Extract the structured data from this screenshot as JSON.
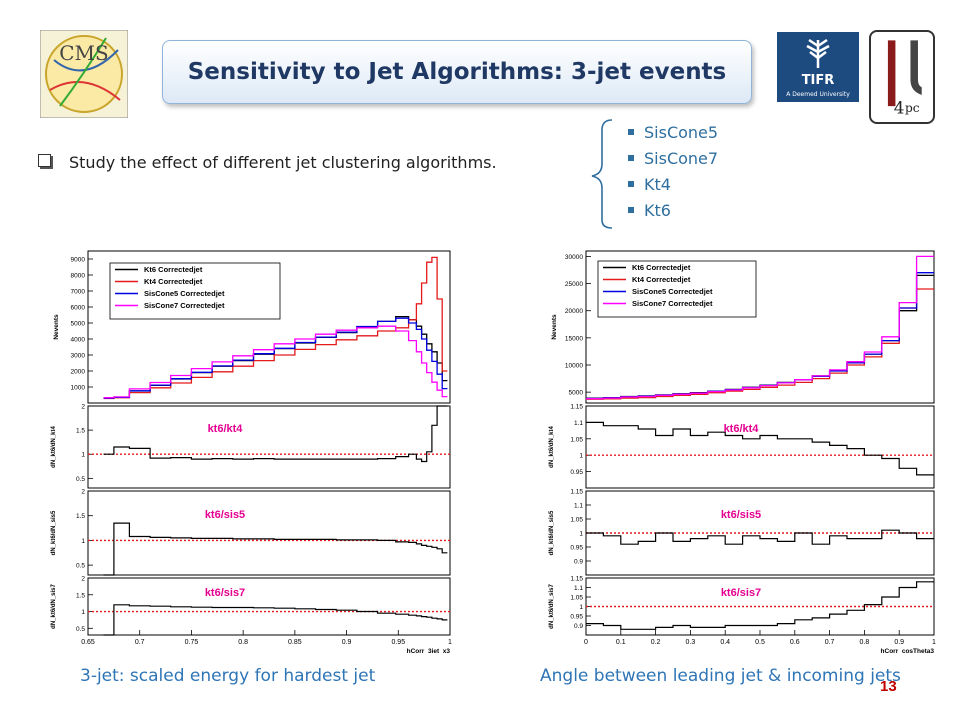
{
  "slide": {
    "title": "Sensitivity to Jet Algorithms: 3-jet events",
    "bullet": "Study the effect of different jet clustering algorithms.",
    "algorithms": [
      "SisCone5",
      "SisCone7",
      "Kt4",
      "Kt6"
    ],
    "caption_left": "3-jet: scaled energy for hardest jet",
    "caption_right": "Angle between leading jet & incoming jets",
    "slide_number": "13",
    "cms_logo_text": "CMS",
    "tifr_logo_text": "A Deemed University"
  },
  "colors": {
    "kt6": "#000000",
    "kt4": "#e41a1c",
    "sis5": "#0000e0",
    "sis7": "#ff00ff",
    "ratio_ref": "#e41a1c",
    "accent": "#2e75b6"
  },
  "chart_data": [
    {
      "type": "line",
      "xlabel": "hCorr_3jet_x3",
      "ylabel": "Nevents",
      "xlim": [
        0.65,
        1.0
      ],
      "x_ticks": [
        "0.65",
        "0.7",
        "0.75",
        "0.8",
        "0.85",
        "0.9",
        "0.95",
        "1"
      ],
      "main": {
        "ylim": [
          0,
          9500
        ],
        "y_ticks": [
          "1000",
          "2000",
          "3000",
          "4000",
          "5000",
          "6000",
          "7000",
          "8000",
          "9000"
        ],
        "x": [
          0.67,
          0.68,
          0.7,
          0.72,
          0.74,
          0.76,
          0.78,
          0.8,
          0.82,
          0.84,
          0.86,
          0.88,
          0.9,
          0.92,
          0.94,
          0.955,
          0.965,
          0.97,
          0.975,
          0.98,
          0.985,
          0.99,
          0.995
        ],
        "series": [
          {
            "name": "Kt6 Correctedjet",
            "values": [
              300,
              350,
              750,
              1100,
              1500,
              1900,
              2300,
              2650,
              3050,
              3400,
              3750,
              4100,
              4400,
              4750,
              5100,
              5400,
              5200,
              4800,
              4300,
              3700,
              3200,
              2500,
              1400
            ]
          },
          {
            "name": "Kt4 Correctedjet",
            "values": [
              280,
              330,
              650,
              950,
              1250,
              1600,
              1950,
              2300,
              2650,
              3000,
              3350,
              3650,
              3950,
              4200,
              4500,
              4700,
              5200,
              6200,
              7500,
              8800,
              9100,
              6500,
              2000
            ]
          },
          {
            "name": "SisCone5 Correctedjet",
            "values": [
              300,
              350,
              760,
              1120,
              1520,
              1920,
              2320,
              2680,
              3080,
              3420,
              3780,
              4120,
              4430,
              4780,
              5100,
              5300,
              5000,
              4600,
              4000,
              3300,
              2600,
              1800,
              900
            ]
          },
          {
            "name": "SisCone7 Correctedjet",
            "values": [
              330,
              380,
              880,
              1280,
              1720,
              2150,
              2570,
              2950,
              3330,
              3700,
              4000,
              4300,
              4550,
              4700,
              4800,
              4500,
              3900,
              3200,
              2500,
              1900,
              1300,
              800,
              400
            ]
          }
        ]
      },
      "ratios": [
        {
          "label": "kt6/kt4",
          "ylabel": "dN_kt6/dN_kt4",
          "ylim": [
            0.3,
            2
          ],
          "y_ticks": [
            "0.5",
            "1",
            "1.5",
            "2"
          ],
          "x": [
            0.67,
            0.68,
            0.7,
            0.72,
            0.74,
            0.76,
            0.78,
            0.8,
            0.82,
            0.84,
            0.86,
            0.88,
            0.9,
            0.92,
            0.94,
            0.955,
            0.965,
            0.97,
            0.975,
            0.98,
            0.985,
            0.99,
            0.995
          ],
          "values": [
            1.0,
            1.15,
            1.12,
            0.92,
            0.93,
            0.9,
            0.91,
            0.9,
            0.91,
            0.9,
            0.9,
            0.9,
            0.9,
            0.9,
            0.91,
            0.95,
            1.0,
            0.9,
            0.85,
            1.05,
            1.6,
            2.0,
            2.0
          ]
        },
        {
          "label": "kt6/sis5",
          "ylabel": "dN_kt6/dN_sis5",
          "ylim": [
            0.3,
            2
          ],
          "y_ticks": [
            "0.5",
            "1",
            "1.5",
            "2"
          ],
          "x": [
            0.67,
            0.68,
            0.7,
            0.72,
            0.74,
            0.76,
            0.78,
            0.8,
            0.82,
            0.84,
            0.86,
            0.88,
            0.9,
            0.92,
            0.94,
            0.955,
            0.965,
            0.97,
            0.975,
            0.98,
            0.985,
            0.99,
            0.995
          ],
          "values": [
            0.3,
            1.35,
            1.08,
            1.06,
            1.05,
            1.04,
            1.04,
            1.03,
            1.03,
            1.02,
            1.02,
            1.02,
            1.01,
            1.01,
            1.0,
            0.97,
            0.96,
            0.93,
            0.9,
            0.88,
            0.86,
            0.83,
            0.75
          ]
        },
        {
          "label": "kt6/sis7",
          "ylabel": "dN_kt6/dN_sis7",
          "ylim": [
            0.3,
            2
          ],
          "y_ticks": [
            "0.5",
            "1",
            "1.5",
            "2"
          ],
          "x": [
            0.67,
            0.68,
            0.7,
            0.72,
            0.74,
            0.76,
            0.78,
            0.8,
            0.82,
            0.84,
            0.86,
            0.88,
            0.9,
            0.92,
            0.94,
            0.955,
            0.965,
            0.97,
            0.975,
            0.98,
            0.985,
            0.99,
            0.995
          ],
          "values": [
            0.3,
            1.2,
            1.17,
            1.16,
            1.14,
            1.13,
            1.12,
            1.12,
            1.11,
            1.1,
            1.08,
            1.06,
            1.04,
            1.0,
            0.95,
            0.92,
            0.89,
            0.87,
            0.85,
            0.83,
            0.8,
            0.78,
            0.75
          ]
        }
      ]
    },
    {
      "type": "line",
      "xlabel": "hCorr_cosTheta3",
      "ylabel": "Nevents",
      "xlim": [
        0,
        1
      ],
      "x_ticks": [
        "0",
        "0.1",
        "0.2",
        "0.3",
        "0.4",
        "0.5",
        "0.6",
        "0.7",
        "0.8",
        "0.9",
        "1"
      ],
      "main": {
        "ylim": [
          3000,
          31000
        ],
        "y_ticks": [
          "5000",
          "10000",
          "15000",
          "20000",
          "25000",
          "30000"
        ],
        "x": [
          0.025,
          0.075,
          0.125,
          0.175,
          0.225,
          0.275,
          0.325,
          0.375,
          0.425,
          0.475,
          0.525,
          0.575,
          0.625,
          0.675,
          0.725,
          0.775,
          0.825,
          0.875,
          0.925,
          0.975
        ],
        "series": [
          {
            "name": "Kt6 Correctedjet",
            "values": [
              3900,
              4000,
              4200,
              4300,
              4500,
              4700,
              4900,
              5200,
              5500,
              5900,
              6300,
              6800,
              7300,
              8000,
              9000,
              10500,
              12000,
              14500,
              20000,
              26500
            ]
          },
          {
            "name": "Kt4 Correctedjet",
            "values": [
              3700,
              3750,
              3900,
              4000,
              4200,
              4400,
              4600,
              4900,
              5200,
              5500,
              5900,
              6300,
              6800,
              7500,
              8500,
              10000,
              11500,
              14000,
              20500,
              24000
            ]
          },
          {
            "name": "SisCone5 Correctedjet",
            "values": [
              3850,
              3950,
              4150,
              4250,
              4450,
              4650,
              4850,
              5150,
              5450,
              5850,
              6250,
              6750,
              7250,
              7900,
              8900,
              10400,
              12000,
              14500,
              20500,
              27000
            ]
          },
          {
            "name": "SisCone7 Correctedjet",
            "values": [
              3800,
              3900,
              4100,
              4200,
              4400,
              4600,
              4800,
              5100,
              5400,
              5800,
              6200,
              6700,
              7300,
              8000,
              9100,
              10600,
              12400,
              15200,
              21500,
              30000
            ]
          }
        ]
      },
      "ratios": [
        {
          "label": "kt6/kt4",
          "ylabel": "dN_kt6/dN_kt4",
          "ylim": [
            0.9,
            1.15
          ],
          "y_ticks": [
            "0.95",
            "1",
            "1.05",
            "1.1",
            "1.15"
          ],
          "x": [
            0.025,
            0.075,
            0.125,
            0.175,
            0.225,
            0.275,
            0.325,
            0.375,
            0.425,
            0.475,
            0.525,
            0.575,
            0.625,
            0.675,
            0.725,
            0.775,
            0.825,
            0.875,
            0.925,
            0.975
          ],
          "values": [
            1.1,
            1.09,
            1.09,
            1.08,
            1.06,
            1.08,
            1.06,
            1.07,
            1.06,
            1.05,
            1.06,
            1.05,
            1.05,
            1.04,
            1.03,
            1.02,
            1.0,
            0.99,
            0.96,
            0.94
          ]
        },
        {
          "label": "kt6/sis5",
          "ylabel": "dN_kt6/dN_sis5",
          "ylim": [
            0.85,
            1.15
          ],
          "y_ticks": [
            "0.9",
            "0.95",
            "1",
            "1.05",
            "1.1",
            "1.15"
          ],
          "x": [
            0.025,
            0.075,
            0.125,
            0.175,
            0.225,
            0.275,
            0.325,
            0.375,
            0.425,
            0.475,
            0.525,
            0.575,
            0.625,
            0.675,
            0.725,
            0.775,
            0.825,
            0.875,
            0.925,
            0.975
          ],
          "values": [
            1.0,
            0.99,
            0.96,
            0.97,
            1.0,
            0.97,
            0.98,
            0.99,
            0.96,
            0.99,
            0.98,
            0.97,
            1.0,
            0.96,
            0.99,
            0.98,
            0.98,
            1.01,
            1.0,
            0.98
          ]
        },
        {
          "label": "kt6/sis7",
          "ylabel": "dN_kt6/dN_sis7",
          "ylim": [
            0.85,
            1.15
          ],
          "y_ticks": [
            "0.9",
            "0.95",
            "1",
            "1.05",
            "1.1",
            "1.15"
          ],
          "x": [
            0.025,
            0.075,
            0.125,
            0.175,
            0.225,
            0.275,
            0.325,
            0.375,
            0.425,
            0.475,
            0.525,
            0.575,
            0.625,
            0.675,
            0.725,
            0.775,
            0.825,
            0.875,
            0.925,
            0.975
          ],
          "values": [
            0.91,
            0.9,
            0.88,
            0.88,
            0.89,
            0.9,
            0.89,
            0.89,
            0.9,
            0.9,
            0.9,
            0.91,
            0.93,
            0.94,
            0.96,
            0.98,
            1.01,
            1.05,
            1.1,
            1.13
          ]
        }
      ]
    }
  ]
}
